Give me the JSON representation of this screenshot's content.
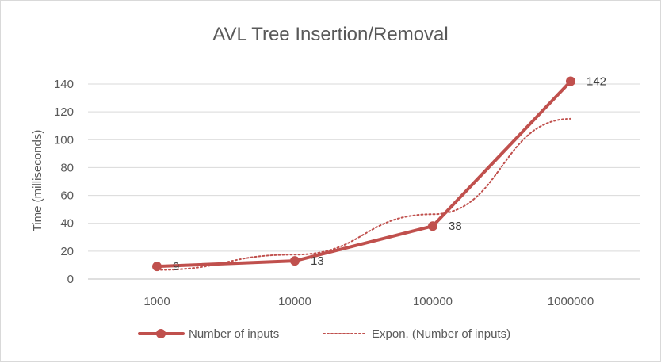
{
  "chart_data": {
    "type": "line",
    "title": "AVL Tree Insertion/Removal",
    "xlabel": "",
    "ylabel": "Time (milliseconds)",
    "categories": [
      "1000",
      "10000",
      "100000",
      "1000000"
    ],
    "ylim": [
      0,
      140
    ],
    "yticks": [
      0,
      20,
      40,
      60,
      80,
      100,
      120,
      140
    ],
    "grid": true,
    "legend_position": "bottom",
    "series": [
      {
        "name": "Number of inputs",
        "values": [
          9,
          13,
          38,
          142
        ],
        "color": "#c0504d",
        "style": "solid",
        "markers": true,
        "data_labels": [
          "9",
          "13",
          "38",
          "142"
        ]
      },
      {
        "name": "Expon. (Number of inputs)",
        "values": [
          6.5,
          17.5,
          46.5,
          115
        ],
        "color": "#c0504d",
        "style": "dotted",
        "markers": false,
        "trendline": "exponential"
      }
    ]
  }
}
